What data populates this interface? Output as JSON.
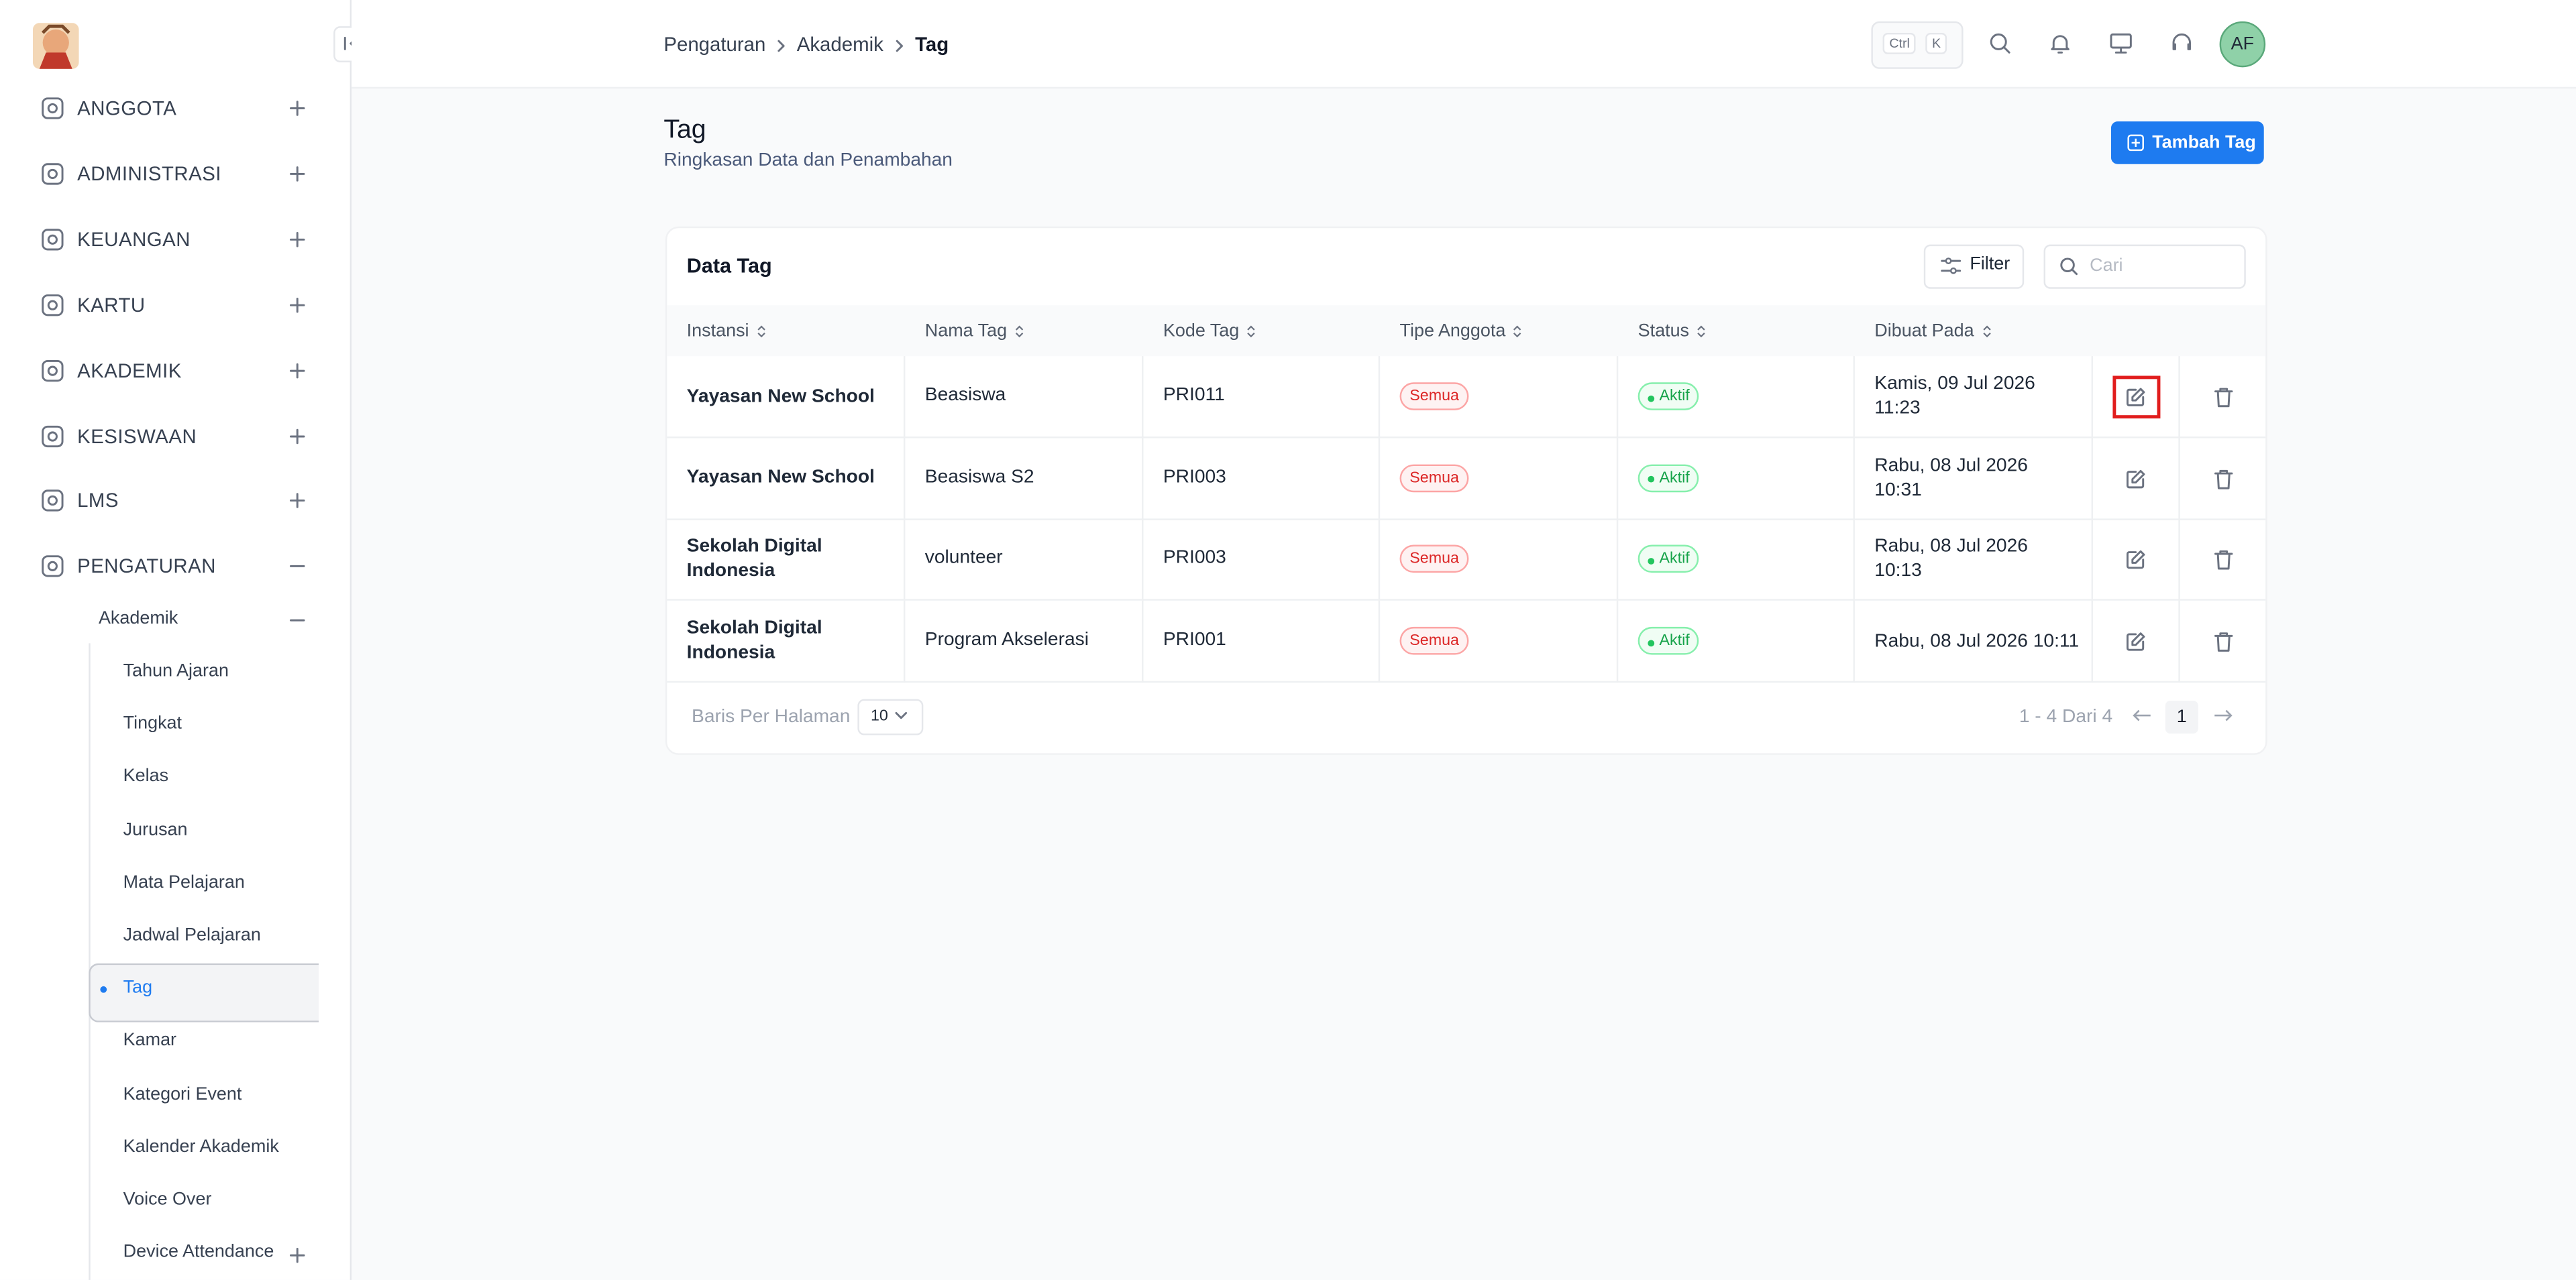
{
  "sidebar": {
    "menu": [
      "ANGGOTA",
      "ADMINISTRASI",
      "KEUANGAN",
      "KARTU",
      "AKADEMIK",
      "KESISWAAN",
      "LMS",
      "PENGATURAN"
    ],
    "group": "Akademik",
    "items": [
      "Tahun Ajaran",
      "Tingkat",
      "Kelas",
      "Jurusan",
      "Mata Pelajaran",
      "Jadwal Pelajaran",
      "Tag",
      "Kamar",
      "Kategori Event",
      "Kalender Akademik",
      "Voice Over",
      "Device Attendance"
    ]
  },
  "topbar": {
    "breadcrumb": [
      "Pengaturan",
      "Akademik",
      "Tag"
    ],
    "shortcut": [
      "Ctrl",
      "K"
    ],
    "avatar": "AF"
  },
  "header": {
    "title": "Tag",
    "subtitle": "Ringkasan Data dan Penambahan",
    "button": "Tambah Tag"
  },
  "table": {
    "title": "Data Tag",
    "filter": "Filter",
    "search_placeholder": "Cari",
    "columns": [
      "Instansi",
      "Nama Tag",
      "Kode Tag",
      "Tipe Anggota",
      "Status",
      "Dibuat Pada"
    ],
    "rows": [
      [
        "Yayasan New School",
        "Beasiswa",
        "PRI011",
        "Semua",
        "Aktif",
        "Kamis, 09 Jul 2026 11:23"
      ],
      [
        "Yayasan New School",
        "Beasiswa S2",
        "PRI003",
        "Semua",
        "Aktif",
        "Rabu, 08 Jul 2026 10:31"
      ],
      [
        "Sekolah Digital Indonesia",
        "volunteer",
        "PRI003",
        "Semua",
        "Aktif",
        "Rabu, 08 Jul 2026 10:13"
      ],
      [
        "Sekolah Digital Indonesia",
        "Program Akselerasi",
        "PRI001",
        "Semua",
        "Aktif",
        "Rabu, 08 Jul 2026 10:11"
      ]
    ]
  },
  "pagination": {
    "rows_label": "Baris Per Halaman",
    "page_size": "10",
    "range": "1 - 4 Dari 4",
    "page": "1"
  }
}
